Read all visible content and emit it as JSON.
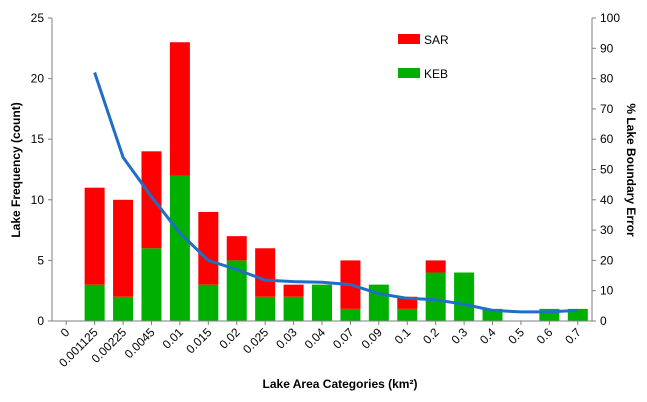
{
  "chart_data": {
    "type": "bar",
    "stacked": true,
    "xlabel": "Lake Area Categories  (km²)",
    "ylabel": "Lake Frequency (count)",
    "y2label": "% Lake Boundary Error",
    "categories": [
      "0",
      "0.001125",
      "0.00225",
      "0.0045",
      "0.01",
      "0.015",
      "0.02",
      "0.025",
      "0.03",
      "0.04",
      "0.07",
      "0.09",
      "0.1",
      "0.2",
      "0.3",
      "0.4",
      "0.5",
      "0.6",
      "0.7"
    ],
    "ylim": [
      0,
      25
    ],
    "yticks": [
      0,
      5,
      10,
      15,
      20,
      25
    ],
    "y2lim": [
      0,
      100
    ],
    "y2ticks": [
      0,
      10,
      20,
      30,
      40,
      50,
      60,
      70,
      80,
      90,
      100
    ],
    "grid": false,
    "legend_position": "top-right",
    "series": [
      {
        "name": "KEB",
        "color": "#00B000",
        "values": [
          0,
          3,
          2,
          6,
          12,
          3,
          5,
          2,
          2,
          3,
          1,
          3,
          1,
          4,
          4,
          1,
          0,
          1,
          1
        ]
      },
      {
        "name": "SAR",
        "color": "#FF0000",
        "values": [
          0,
          8,
          8,
          8,
          11,
          6,
          2,
          4,
          1,
          0,
          4,
          0,
          1,
          1,
          0,
          0,
          0,
          0,
          0
        ]
      }
    ],
    "line_series": {
      "axis": "right",
      "color": "#1F6FC5",
      "values": [
        null,
        82,
        54,
        41,
        29,
        20,
        17,
        13.5,
        13,
        12.8,
        12,
        9,
        7.5,
        7,
        5.5,
        3.5,
        3,
        3,
        3.5
      ]
    }
  }
}
